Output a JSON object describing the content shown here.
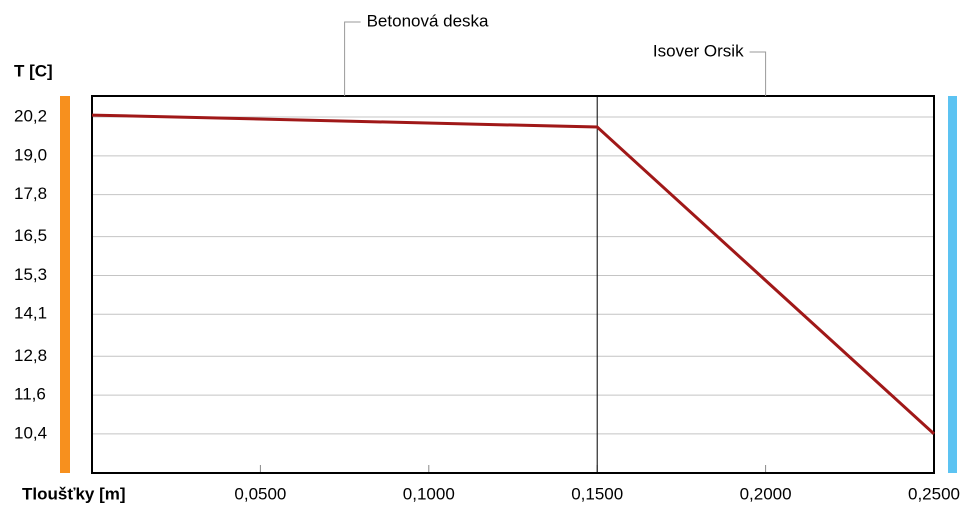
{
  "chart_data": {
    "type": "line",
    "y_label": "T [C]",
    "x_label": "Tloušťky [m]",
    "x": [
      0,
      0.15,
      0.25
    ],
    "series": [
      {
        "name": null,
        "color": "#a01818",
        "values": [
          20.26,
          19.89,
          10.4
        ]
      }
    ],
    "layers": [
      {
        "name": "Betonová deska",
        "start": 0,
        "end": 0.15
      },
      {
        "name": "Isover Orsik",
        "start": 0.15,
        "end": 0.25
      }
    ],
    "xlim": [
      0,
      0.25
    ],
    "xticks": [
      {
        "value": 0.05,
        "label": "0,0500"
      },
      {
        "value": 0.1,
        "label": "0,1000"
      },
      {
        "value": 0.15,
        "label": "0,1500"
      },
      {
        "value": 0.2,
        "label": "0,2000"
      },
      {
        "value": 0.25,
        "label": "0,2500"
      }
    ],
    "ylim": [
      9.19,
      20.85
    ],
    "yticks": [
      {
        "value": 20.2,
        "label": "20,2"
      },
      {
        "value": 19.0,
        "label": "19,0"
      },
      {
        "value": 17.8,
        "label": "17,8"
      },
      {
        "value": 16.5,
        "label": "16,5"
      },
      {
        "value": 15.3,
        "label": "15,3"
      },
      {
        "value": 14.1,
        "label": "14,1"
      },
      {
        "value": 12.8,
        "label": "12,8"
      },
      {
        "value": 11.6,
        "label": "11,6"
      },
      {
        "value": 10.4,
        "label": "10,4"
      }
    ],
    "grid": true,
    "left_bar_color": "#f7901e",
    "right_bar_color": "#5cc3f2"
  }
}
